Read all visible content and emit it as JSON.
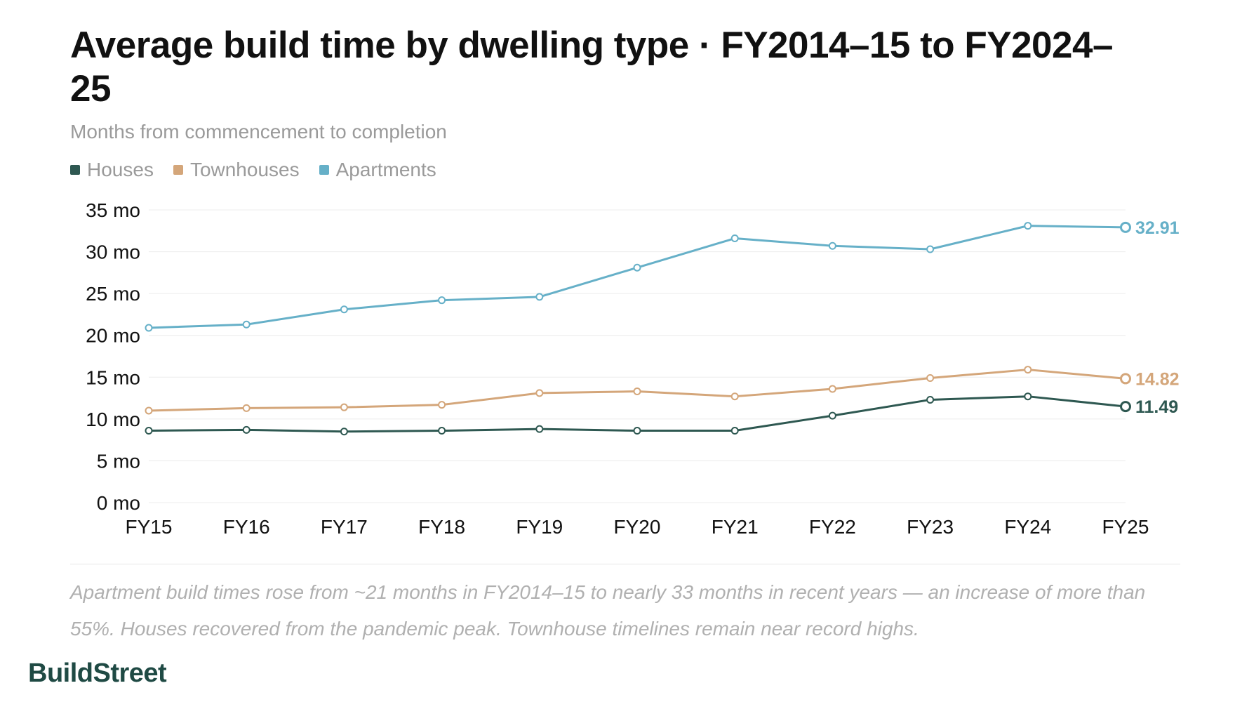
{
  "title": "Average build time by dwelling type · FY2014–15 to FY2024–25",
  "subtitle": "Months from commencement to completion",
  "note": "Apartment build times rose from ~21 months in FY2014–15 to nearly 33 months in recent years — an increase of more than 55%. Houses recovered from the pandemic peak. Townhouse timelines remain near record highs.",
  "brand": "BuildStreet",
  "colors": {
    "houses": "#2e5851",
    "townhouses": "#d4a67a",
    "apartments": "#66b0c8",
    "grid": "#ececec"
  },
  "chart_data": {
    "type": "line",
    "title": "Average build time by dwelling type · FY2014–15 to FY2024–25",
    "subtitle": "Months from commencement to completion",
    "categories": [
      "FY15",
      "FY16",
      "FY17",
      "FY18",
      "FY19",
      "FY20",
      "FY21",
      "FY22",
      "FY23",
      "FY24",
      "FY25"
    ],
    "y_ticks": [
      "0 mo",
      "5 mo",
      "10 mo",
      "15 mo",
      "20 mo",
      "25 mo",
      "30 mo",
      "35 mo"
    ],
    "ylim": [
      0,
      35
    ],
    "grid": true,
    "legend_position": "top-left",
    "series": [
      {
        "name": "Houses",
        "color": "#2e5851",
        "values": [
          8.6,
          8.7,
          8.5,
          8.6,
          8.8,
          8.6,
          8.6,
          10.4,
          12.3,
          12.7,
          11.49
        ],
        "end_label": "11.49"
      },
      {
        "name": "Townhouses",
        "color": "#d4a67a",
        "values": [
          11.0,
          11.3,
          11.4,
          11.7,
          13.1,
          13.3,
          12.7,
          13.6,
          14.9,
          15.9,
          14.82
        ],
        "end_label": "14.82"
      },
      {
        "name": "Apartments",
        "color": "#66b0c8",
        "values": [
          20.9,
          21.3,
          23.1,
          24.2,
          24.6,
          28.1,
          31.6,
          30.7,
          30.3,
          33.1,
          32.91
        ],
        "end_label": "32.91"
      }
    ]
  }
}
